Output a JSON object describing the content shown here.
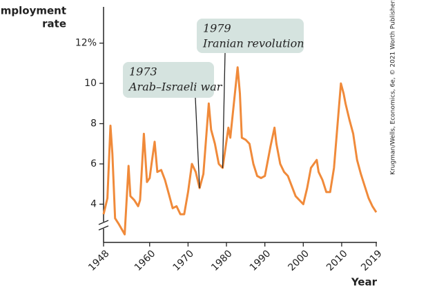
{
  "chart_data": {
    "type": "line",
    "y_label": [
      "Unemployment",
      "rate"
    ],
    "x_label": "Year",
    "credit": "Krugman/Wells, Economics, 6e, © 2021 Worth Publishers",
    "xlim": [
      1948,
      2019
    ],
    "ylim": [
      2.1,
      13.8
    ],
    "xticks": [
      1948,
      1960,
      1970,
      1980,
      1990,
      2000,
      2010,
      2019
    ],
    "yticks": [
      4,
      6,
      8,
      10,
      {
        "value": 12,
        "label": "12%"
      }
    ],
    "series": [
      {
        "color": "#f08a3a",
        "x": [
          1948,
          1949,
          1949.8,
          1950.3,
          1951,
          1952,
          1953.5,
          1954.5,
          1955,
          1956,
          1957,
          1957.5,
          1958.5,
          1959.3,
          1960,
          1960.5,
          1961.3,
          1962,
          1963,
          1964,
          1965,
          1966,
          1967,
          1968,
          1969,
          1970,
          1971,
          1972,
          1973,
          1974,
          1975.4,
          1976,
          1977,
          1978,
          1979,
          1980.5,
          1981,
          1982.9,
          1983.5,
          1984,
          1985,
          1986,
          1987,
          1988,
          1989,
          1990,
          1991.5,
          1992.5,
          1993,
          1994,
          1995,
          1996,
          1997,
          1998,
          1999,
          2000,
          2001,
          2002,
          2003.5,
          2004,
          2005,
          2006,
          2007,
          2008,
          2009.8,
          2010.5,
          2011,
          2012,
          2013,
          2014,
          2015,
          2016,
          2017,
          2018,
          2019
        ],
        "values": [
          3.5,
          4.3,
          7.9,
          6.5,
          3.3,
          3.0,
          2.5,
          5.9,
          4.4,
          4.2,
          3.9,
          4.2,
          7.5,
          5.1,
          5.3,
          6.0,
          7.1,
          5.6,
          5.7,
          5.2,
          4.5,
          3.8,
          3.9,
          3.5,
          3.5,
          4.6,
          6.0,
          5.6,
          4.8,
          5.5,
          9.0,
          7.7,
          7.0,
          6.0,
          5.8,
          7.8,
          7.3,
          10.8,
          9.5,
          7.3,
          7.2,
          7.0,
          6.0,
          5.4,
          5.3,
          5.4,
          6.9,
          7.8,
          7.0,
          6.0,
          5.6,
          5.4,
          4.9,
          4.4,
          4.2,
          4.0,
          4.8,
          5.8,
          6.2,
          5.6,
          5.2,
          4.6,
          4.6,
          5.8,
          10.0,
          9.5,
          9.0,
          8.2,
          7.5,
          6.2,
          5.5,
          4.9,
          4.3,
          3.9,
          3.6
        ]
      }
    ],
    "annotations": [
      {
        "lines": [
          "1973",
          "Arab–Israeli war"
        ],
        "x": 1973,
        "y": 4.8
      },
      {
        "lines": [
          "1979",
          "Iranian revolution"
        ],
        "x": 1979,
        "y": 5.8
      }
    ]
  }
}
